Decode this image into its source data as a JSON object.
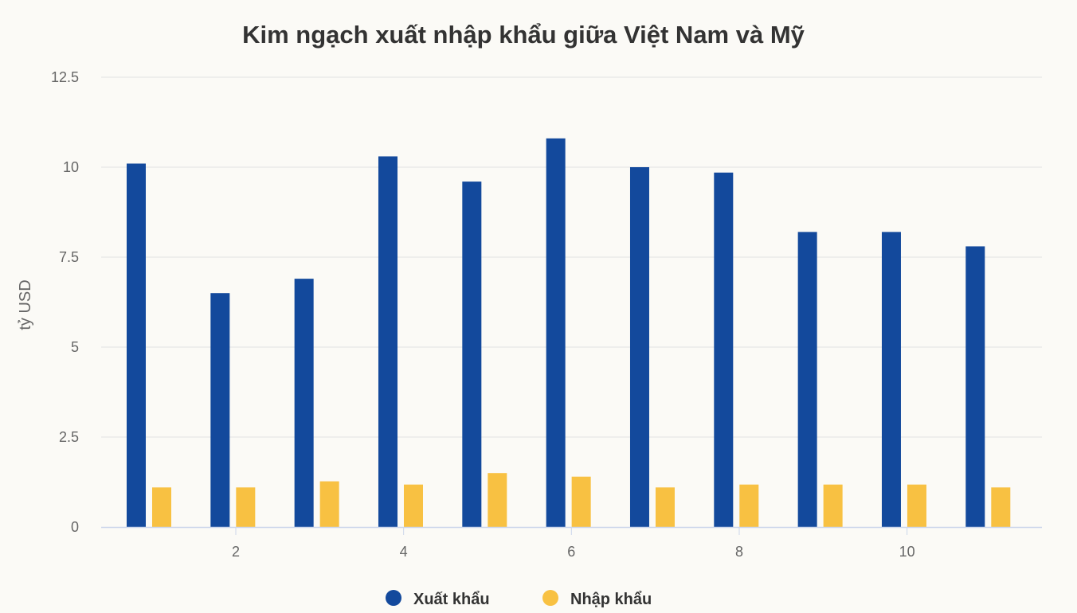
{
  "chart_data": {
    "type": "bar",
    "title": "Kim ngạch xuất nhập khẩu giữa Việt Nam và Mỹ",
    "xlabel": "",
    "ylabel": "tỷ USD",
    "x": [
      1,
      2,
      3,
      4,
      5,
      6,
      7,
      8,
      9,
      10,
      11
    ],
    "xticks": [
      2,
      4,
      6,
      8,
      10
    ],
    "yticks": [
      "0",
      "2.5",
      "5",
      "7.5",
      "10",
      "12.5"
    ],
    "ylim": [
      0,
      12.5
    ],
    "grid": true,
    "legend_position": "bottom",
    "series": [
      {
        "name": "Xuất khẩu",
        "color": "#13499c",
        "values": [
          10.1,
          6.5,
          6.9,
          10.3,
          9.6,
          10.8,
          10.0,
          9.85,
          8.2,
          8.2,
          7.8
        ]
      },
      {
        "name": "Nhập khẩu",
        "color": "#f8c142",
        "values": [
          1.1,
          1.1,
          1.27,
          1.18,
          1.5,
          1.4,
          1.1,
          1.18,
          1.18,
          1.18,
          1.1
        ]
      }
    ]
  }
}
